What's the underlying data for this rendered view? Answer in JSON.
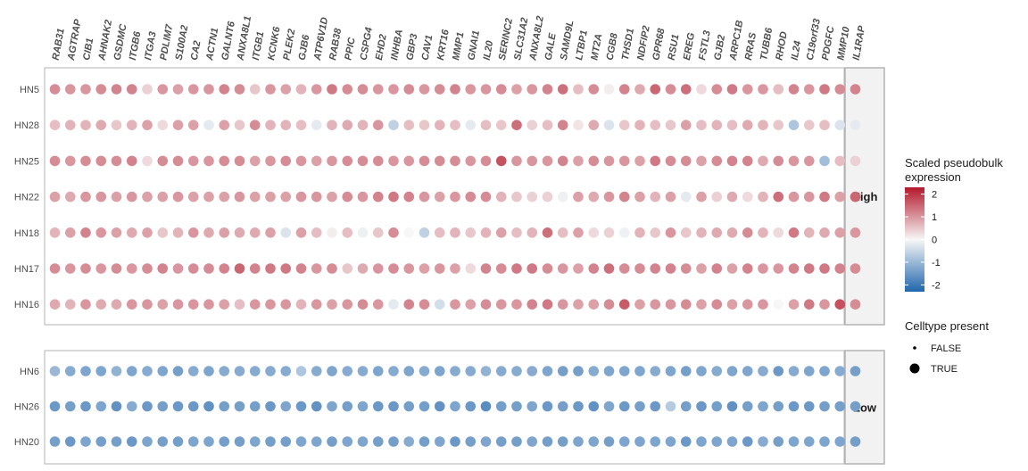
{
  "chart_data": {
    "type": "dotplot",
    "genes": [
      "RAB31",
      "AGTRAP",
      "CIB1",
      "AHNAK2",
      "GSDMC",
      "ITGB6",
      "ITGA3",
      "PDLIM7",
      "S100A2",
      "CA2",
      "ACTN1",
      "GALNT6",
      "ANXA8L1",
      "ITGB1",
      "KCNK6",
      "PLEK2",
      "GJB6",
      "ATP6V1D",
      "RAB38",
      "PPIC",
      "CSPG4",
      "EHD2",
      "INHBA",
      "GBP3",
      "CAV1",
      "KRT16",
      "MMP1",
      "GNAI1",
      "IL20",
      "SERINC2",
      "SLC31A2",
      "ANXA8L2",
      "GALE",
      "SAMD9L",
      "LTBP1",
      "MT2A",
      "CGB8",
      "THSD1",
      "NDFIP2",
      "GPR68",
      "RSU1",
      "EREG",
      "FSTL3",
      "GJB2",
      "ARPC1B",
      "RRAS",
      "TUBB6",
      "RHOD",
      "IL24",
      "C19orf33",
      "PDGFC",
      "MMP10",
      "IL1RAP"
    ],
    "facets": [
      {
        "label": "High",
        "rows": [
          {
            "sample": "HN5",
            "values": [
              1.1,
              1.0,
              1.0,
              1.1,
              1.2,
              1.2,
              0.4,
              1.0,
              0.9,
              1.0,
              1.0,
              1.2,
              1.1,
              0.5,
              1.0,
              0.9,
              0.7,
              1.0,
              1.3,
              1.1,
              1.1,
              1.0,
              1.0,
              1.1,
              1.0,
              1.1,
              1.2,
              1.0,
              1.0,
              1.1,
              0.9,
              1.0,
              1.2,
              1.4,
              0.6,
              1.1,
              0.1,
              1.2,
              0.8,
              1.5,
              1.1,
              1.4,
              0.3,
              1.1,
              1.3,
              1.0,
              1.0,
              0.6,
              1.2,
              1.0,
              1.3,
              1.1,
              1.2
            ]
          },
          {
            "sample": "HN28",
            "values": [
              0.6,
              0.7,
              0.7,
              0.8,
              0.5,
              0.7,
              0.9,
              0.3,
              0.9,
              0.9,
              -0.2,
              0.9,
              0.5,
              1.1,
              0.7,
              0.7,
              0.6,
              -0.2,
              0.7,
              0.8,
              0.7,
              1.0,
              -0.6,
              0.6,
              0.5,
              0.7,
              0.6,
              -0.2,
              0.6,
              0.5,
              1.4,
              0.4,
              0.6,
              1.2,
              0.2,
              0.8,
              -0.3,
              0.5,
              0.7,
              0.6,
              0.5,
              0.9,
              0.6,
              0.7,
              0.6,
              0.8,
              0.7,
              0.5,
              -0.8,
              0.5,
              0.6,
              -0.3,
              -0.2
            ]
          },
          {
            "sample": "HN25",
            "values": [
              1.1,
              1.0,
              1.1,
              1.1,
              1.1,
              1.2,
              0.3,
              1.1,
              1.1,
              1.0,
              1.0,
              1.1,
              1.1,
              0.9,
              1.0,
              1.1,
              1.0,
              0.9,
              1.0,
              1.1,
              1.1,
              1.1,
              1.0,
              1.0,
              1.1,
              1.1,
              1.1,
              1.0,
              1.1,
              1.7,
              1.0,
              1.0,
              1.0,
              1.2,
              0.9,
              1.1,
              1.0,
              1.0,
              0.9,
              1.3,
              1.1,
              1.1,
              0.9,
              1.1,
              1.2,
              1.2,
              0.8,
              1.1,
              1.0,
              1.0,
              -0.9,
              0.6,
              0.4
            ]
          },
          {
            "sample": "HN22",
            "values": [
              0.9,
              0.8,
              1.0,
              1.0,
              0.9,
              1.0,
              0.9,
              0.9,
              1.0,
              0.9,
              0.9,
              0.9,
              1.0,
              0.9,
              0.9,
              0.9,
              1.0,
              1.0,
              0.9,
              1.1,
              1.0,
              1.2,
              1.3,
              1.2,
              1.0,
              0.9,
              1.0,
              1.1,
              1.1,
              0.7,
              0.5,
              0.4,
              0.4,
              -0.1,
              0.9,
              0.8,
              1.0,
              1.2,
              0.9,
              0.7,
              0.9,
              -0.2,
              0.9,
              0.4,
              0.8,
              0.3,
              0.7,
              1.4,
              1.0,
              1.0,
              1.3,
              0.9,
              1.5
            ]
          },
          {
            "sample": "HN18",
            "values": [
              0.7,
              0.9,
              1.2,
              1.0,
              0.9,
              0.8,
              0.9,
              0.5,
              0.7,
              1.0,
              0.8,
              0.9,
              0.8,
              0.8,
              0.9,
              -0.3,
              0.9,
              0.6,
              0.1,
              0.6,
              -0.1,
              0.5,
              1.1,
              0.0,
              -0.6,
              0.6,
              0.7,
              0.5,
              0.7,
              0.9,
              0.6,
              0.7,
              1.4,
              0.6,
              0.9,
              0.3,
              0.4,
              -0.1,
              0.7,
              0.5,
              1.0,
              0.5,
              0.7,
              0.8,
              0.8,
              1.1,
              0.7,
              0.3,
              1.3,
              0.7,
              0.8,
              0.9,
              1.0
            ]
          },
          {
            "sample": "HN17",
            "values": [
              1.1,
              1.0,
              1.1,
              1.0,
              1.1,
              1.0,
              1.1,
              1.2,
              1.0,
              1.1,
              1.1,
              1.2,
              1.5,
              1.2,
              1.3,
              1.3,
              1.2,
              1.0,
              1.1,
              0.5,
              0.8,
              1.0,
              1.1,
              1.0,
              0.9,
              1.0,
              0.9,
              0.3,
              1.2,
              1.1,
              1.3,
              1.3,
              1.1,
              1.0,
              0.9,
              1.2,
              1.4,
              1.1,
              1.1,
              1.2,
              1.2,
              1.1,
              0.9,
              1.2,
              0.9,
              1.2,
              1.0,
              1.0,
              1.2,
              1.3,
              1.3,
              1.2,
              1.1
            ]
          },
          {
            "sample": "HN16",
            "values": [
              0.8,
              0.7,
              1.0,
              0.8,
              0.8,
              1.0,
              1.0,
              0.9,
              1.0,
              1.0,
              1.0,
              0.9,
              0.6,
              1.0,
              1.0,
              1.0,
              0.7,
              1.0,
              0.9,
              1.0,
              1.1,
              1.0,
              -0.2,
              1.2,
              1.1,
              -0.4,
              1.0,
              0.9,
              1.1,
              1.0,
              1.0,
              1.2,
              1.3,
              1.0,
              0.9,
              0.9,
              1.1,
              1.6,
              0.9,
              1.0,
              1.0,
              1.1,
              0.9,
              1.1,
              0.9,
              1.0,
              1.0,
              0.0,
              0.9,
              1.3,
              1.0,
              1.7,
              1.1
            ]
          }
        ]
      },
      {
        "label": "Low",
        "rows": [
          {
            "sample": "HN6",
            "values": [
              -1.0,
              -1.2,
              -1.3,
              -1.3,
              -1.1,
              -1.3,
              -1.2,
              -1.3,
              -1.4,
              -1.2,
              -1.3,
              -1.2,
              -1.2,
              -1.2,
              -1.2,
              -1.2,
              -0.8,
              -1.2,
              -1.3,
              -1.2,
              -1.2,
              -1.3,
              -1.2,
              -1.3,
              -1.2,
              -1.3,
              -1.2,
              -1.2,
              -1.1,
              -1.2,
              -1.2,
              -1.2,
              -1.3,
              -1.4,
              -1.4,
              -1.2,
              -1.3,
              -1.3,
              -1.3,
              -1.2,
              -1.3,
              -1.4,
              -1.3,
              -1.2,
              -1.3,
              -1.3,
              -1.2,
              -1.5,
              -1.2,
              -1.3,
              -1.3,
              -1.2,
              -1.4
            ]
          },
          {
            "sample": "HN26",
            "values": [
              -1.5,
              -1.4,
              -1.5,
              -1.3,
              -1.6,
              -1.2,
              -1.5,
              -1.4,
              -1.5,
              -1.5,
              -1.6,
              -1.4,
              -1.4,
              -1.4,
              -1.5,
              -1.3,
              -1.5,
              -1.6,
              -1.3,
              -1.4,
              -1.3,
              -1.5,
              -1.5,
              -1.4,
              -1.4,
              -1.6,
              -1.3,
              -1.5,
              -1.7,
              -1.4,
              -1.4,
              -1.3,
              -1.5,
              -1.4,
              -1.5,
              -1.6,
              -1.3,
              -1.5,
              -1.4,
              -1.5,
              -0.7,
              -1.4,
              -1.5,
              -1.4,
              -1.6,
              -1.4,
              -1.3,
              -1.4,
              -1.5,
              -1.5,
              -1.4,
              -1.4,
              -1.4
            ]
          },
          {
            "sample": "HN20",
            "values": [
              -1.4,
              -1.5,
              -1.3,
              -1.4,
              -1.4,
              -1.5,
              -1.3,
              -1.4,
              -1.4,
              -1.3,
              -1.3,
              -1.4,
              -1.4,
              -1.3,
              -1.4,
              -1.4,
              -1.3,
              -1.3,
              -1.4,
              -1.3,
              -1.3,
              -1.4,
              -1.4,
              -1.2,
              -1.4,
              -1.3,
              -1.5,
              -1.4,
              -1.3,
              -1.4,
              -1.4,
              -1.3,
              -1.4,
              -1.4,
              -1.3,
              -1.3,
              -1.4,
              -1.3,
              -1.3,
              -1.3,
              -1.3,
              -1.5,
              -1.3,
              -1.3,
              -1.3,
              -1.5,
              -1.2,
              -1.4,
              -1.3,
              -1.3,
              -1.3,
              -1.3,
              -1.4
            ]
          }
        ]
      }
    ],
    "color_legend": {
      "title_lines": [
        "Scaled pseudobulk",
        "expression"
      ],
      "ticks": [
        2,
        1,
        0,
        -1,
        -2
      ],
      "range": [
        -2.3,
        2.3
      ],
      "colors": {
        "low": "#2166ac",
        "mid": "#f7f7f7",
        "high": "#b2182b"
      }
    },
    "size_legend": {
      "title": "Celltype present",
      "entries": [
        {
          "label": "FALSE",
          "present": false
        },
        {
          "label": "TRUE",
          "present": true
        }
      ]
    }
  }
}
